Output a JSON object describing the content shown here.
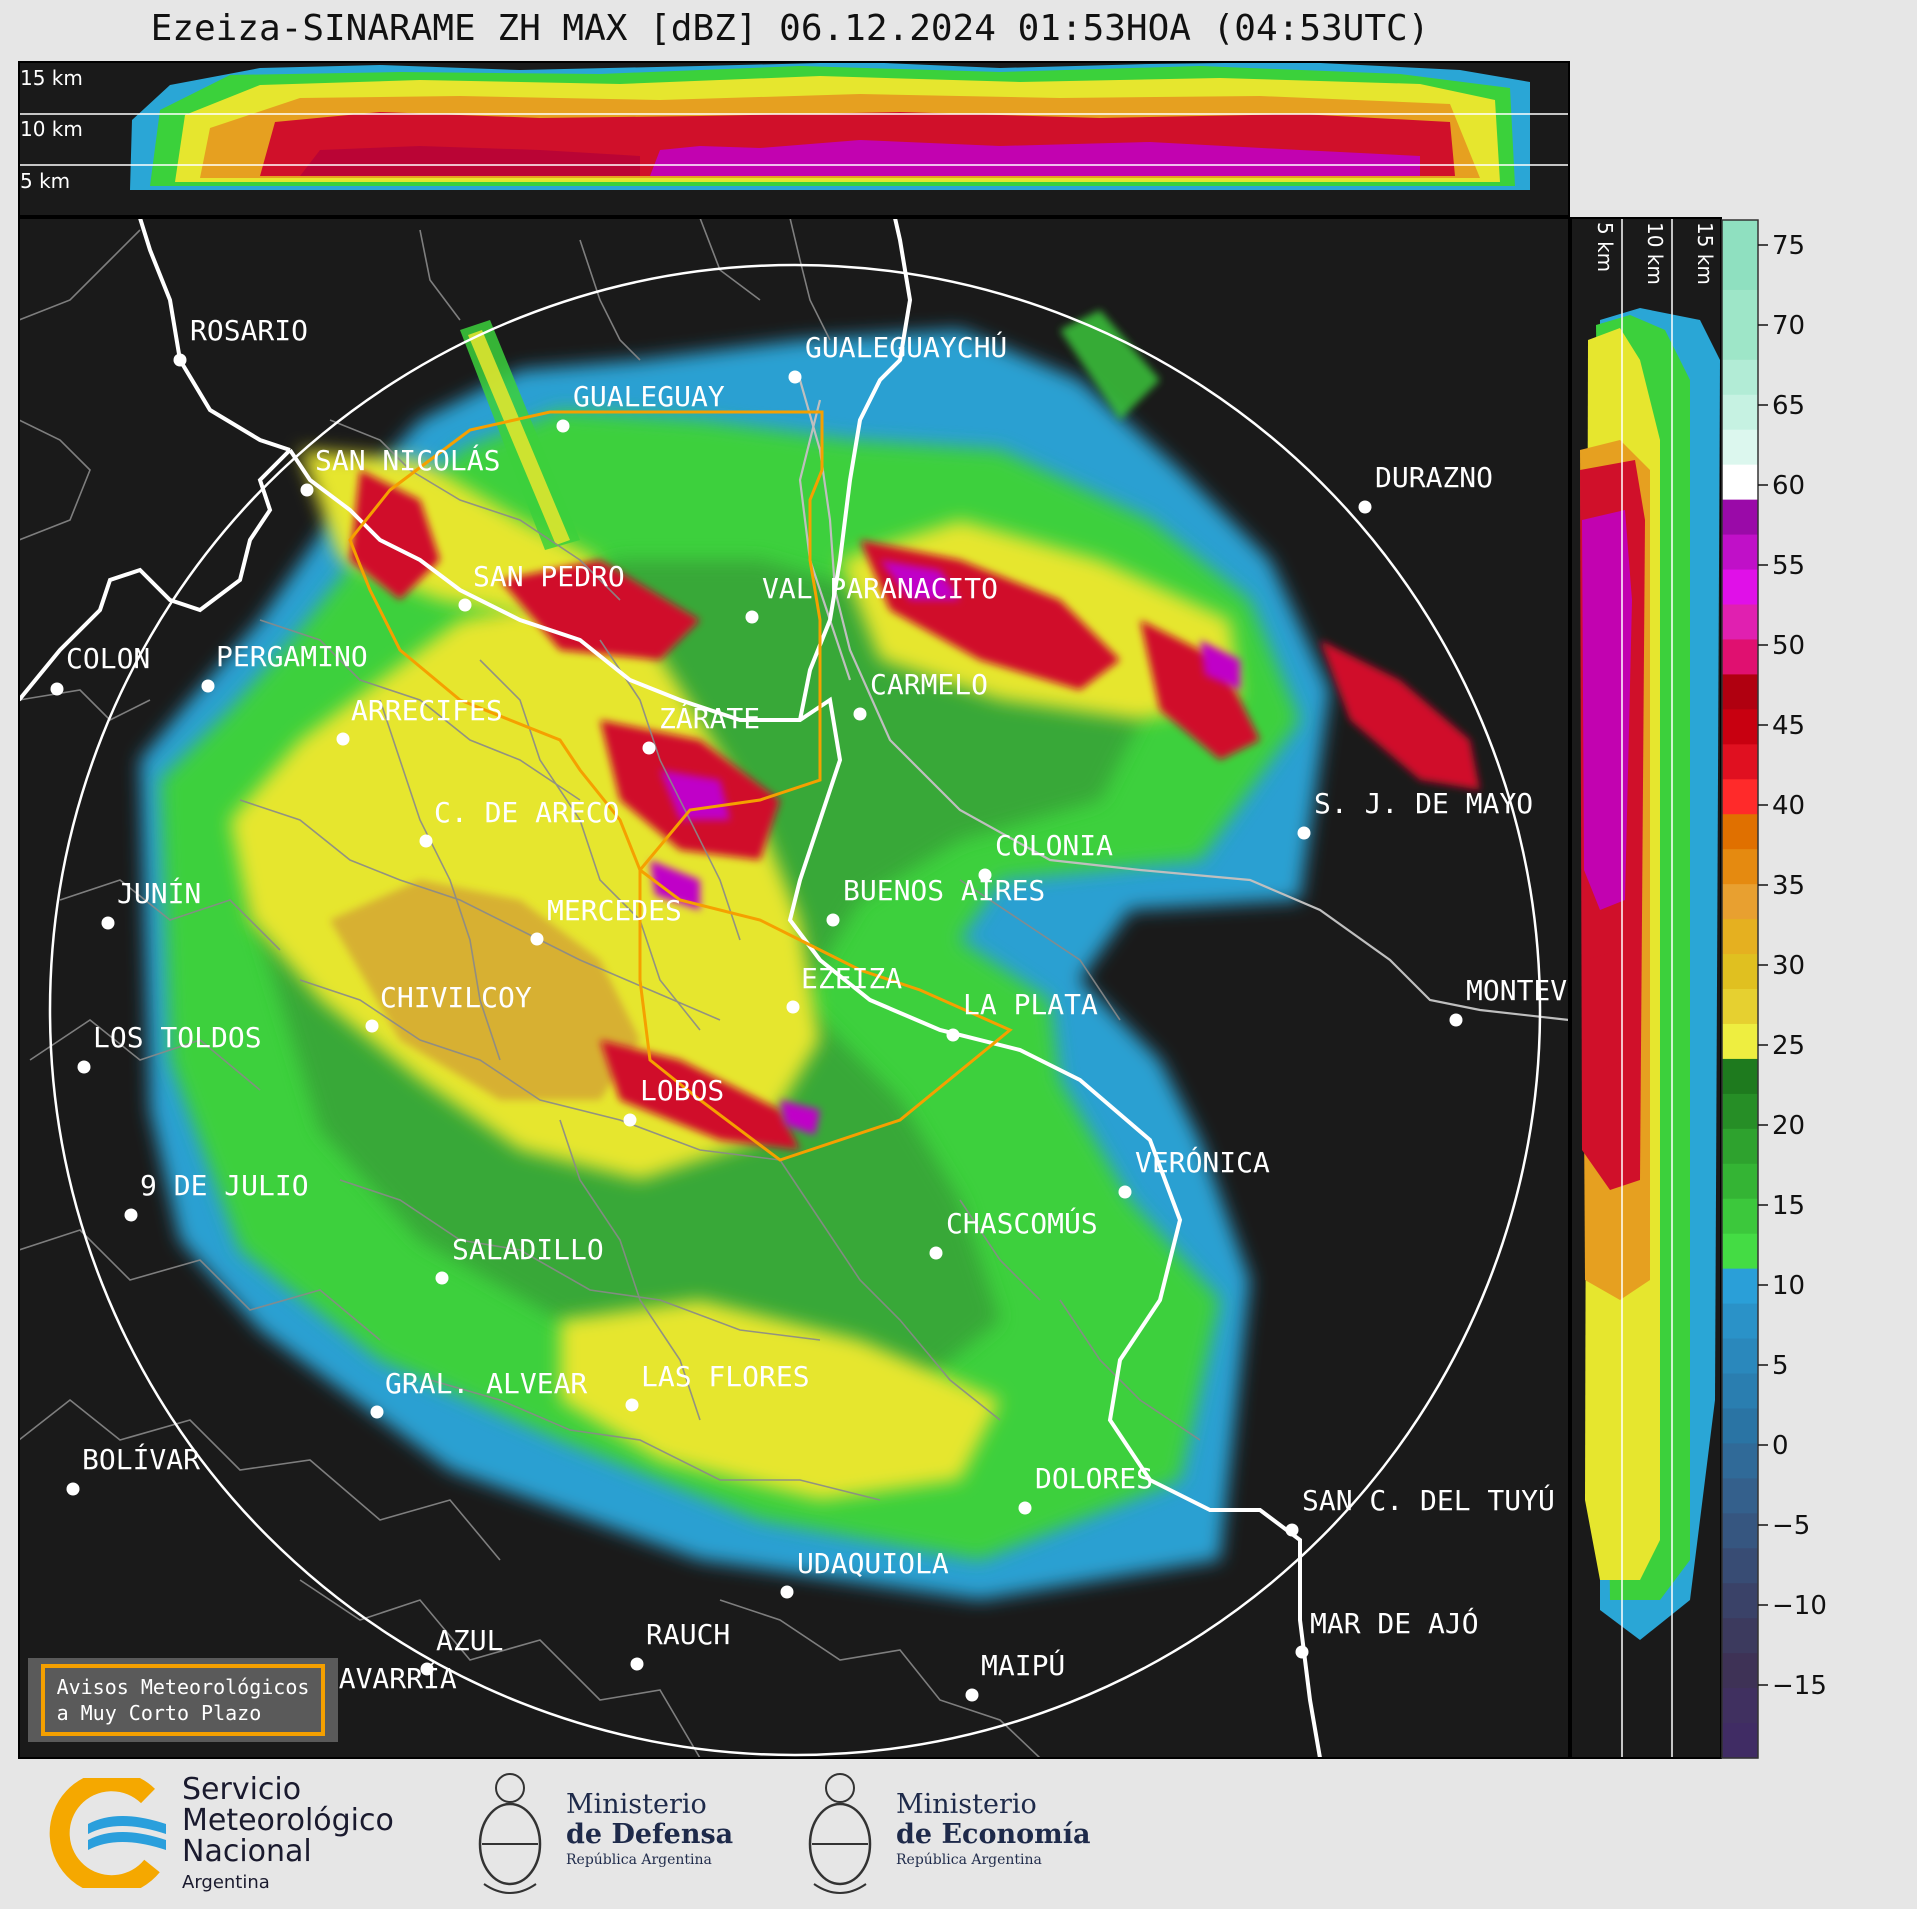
{
  "title": "Ezeiza-SINARAME ZH MAX [dBZ] 06.12.2024 01:53HOA (04:53UTC)",
  "top_panel_heights": [
    "15 km",
    "10 km",
    "5 km"
  ],
  "side_panel_heights": [
    "5 km",
    "10 km",
    "15 km"
  ],
  "colorbar": {
    "ticks": [
      "75",
      "70",
      "65",
      "60",
      "55",
      "50",
      "45",
      "40",
      "35",
      "30",
      "25",
      "20",
      "15",
      "10",
      "5",
      "0",
      "−5",
      "−10",
      "−15"
    ]
  },
  "cities": [
    {
      "name": "ROSARIO"
    },
    {
      "name": "GUALEGUAYCHÚ"
    },
    {
      "name": "GUALEGUAY"
    },
    {
      "name": "SAN NICOLÁS"
    },
    {
      "name": "DURAZNO"
    },
    {
      "name": "SAN PEDRO"
    },
    {
      "name": "VAL PARANACITO"
    },
    {
      "name": "COLON"
    },
    {
      "name": "PERGAMINO"
    },
    {
      "name": "CARMELO"
    },
    {
      "name": "ARRECIFES"
    },
    {
      "name": "ZÁRATE"
    },
    {
      "name": "S. J. DE MAYO"
    },
    {
      "name": "C. DE ARECO"
    },
    {
      "name": "COLONIA"
    },
    {
      "name": "JUNÍN"
    },
    {
      "name": "BUENOS AIRES"
    },
    {
      "name": "MERCEDES"
    },
    {
      "name": "EZEIZA"
    },
    {
      "name": "MONTEV"
    },
    {
      "name": "CHIVILCOY"
    },
    {
      "name": "LA PLATA"
    },
    {
      "name": "LOS TOLDOS"
    },
    {
      "name": "LOBOS"
    },
    {
      "name": "VERÓNICA"
    },
    {
      "name": "9 DE JULIO"
    },
    {
      "name": "CHASCOMÚS"
    },
    {
      "name": "SALADILLO"
    },
    {
      "name": "GRAL. ALVEAR"
    },
    {
      "name": "LAS FLORES"
    },
    {
      "name": "BOLÍVAR"
    },
    {
      "name": "DOLORES"
    },
    {
      "name": "SAN C. DEL TUYÚ"
    },
    {
      "name": "UDAQUIOLA"
    },
    {
      "name": "AZUL"
    },
    {
      "name": "RAUCH"
    },
    {
      "name": "MAR DE AJÓ"
    },
    {
      "name": "MAIPÚ"
    },
    {
      "name": "OLAVARRÍA"
    }
  ],
  "warning_box": {
    "line1": "Avisos Meteorológicos",
    "line2": "a Muy Corto Plazo"
  },
  "logos": {
    "smn": {
      "line1": "Servicio",
      "line2": "Meteorológico",
      "line3": "Nacional",
      "line4": "Argentina"
    },
    "defensa": {
      "line1": "Ministerio",
      "line2": "de Defensa",
      "line3": "República Argentina"
    },
    "economia": {
      "line1": "Ministerio",
      "line2": "de Economía",
      "line3": "República Argentina"
    }
  }
}
